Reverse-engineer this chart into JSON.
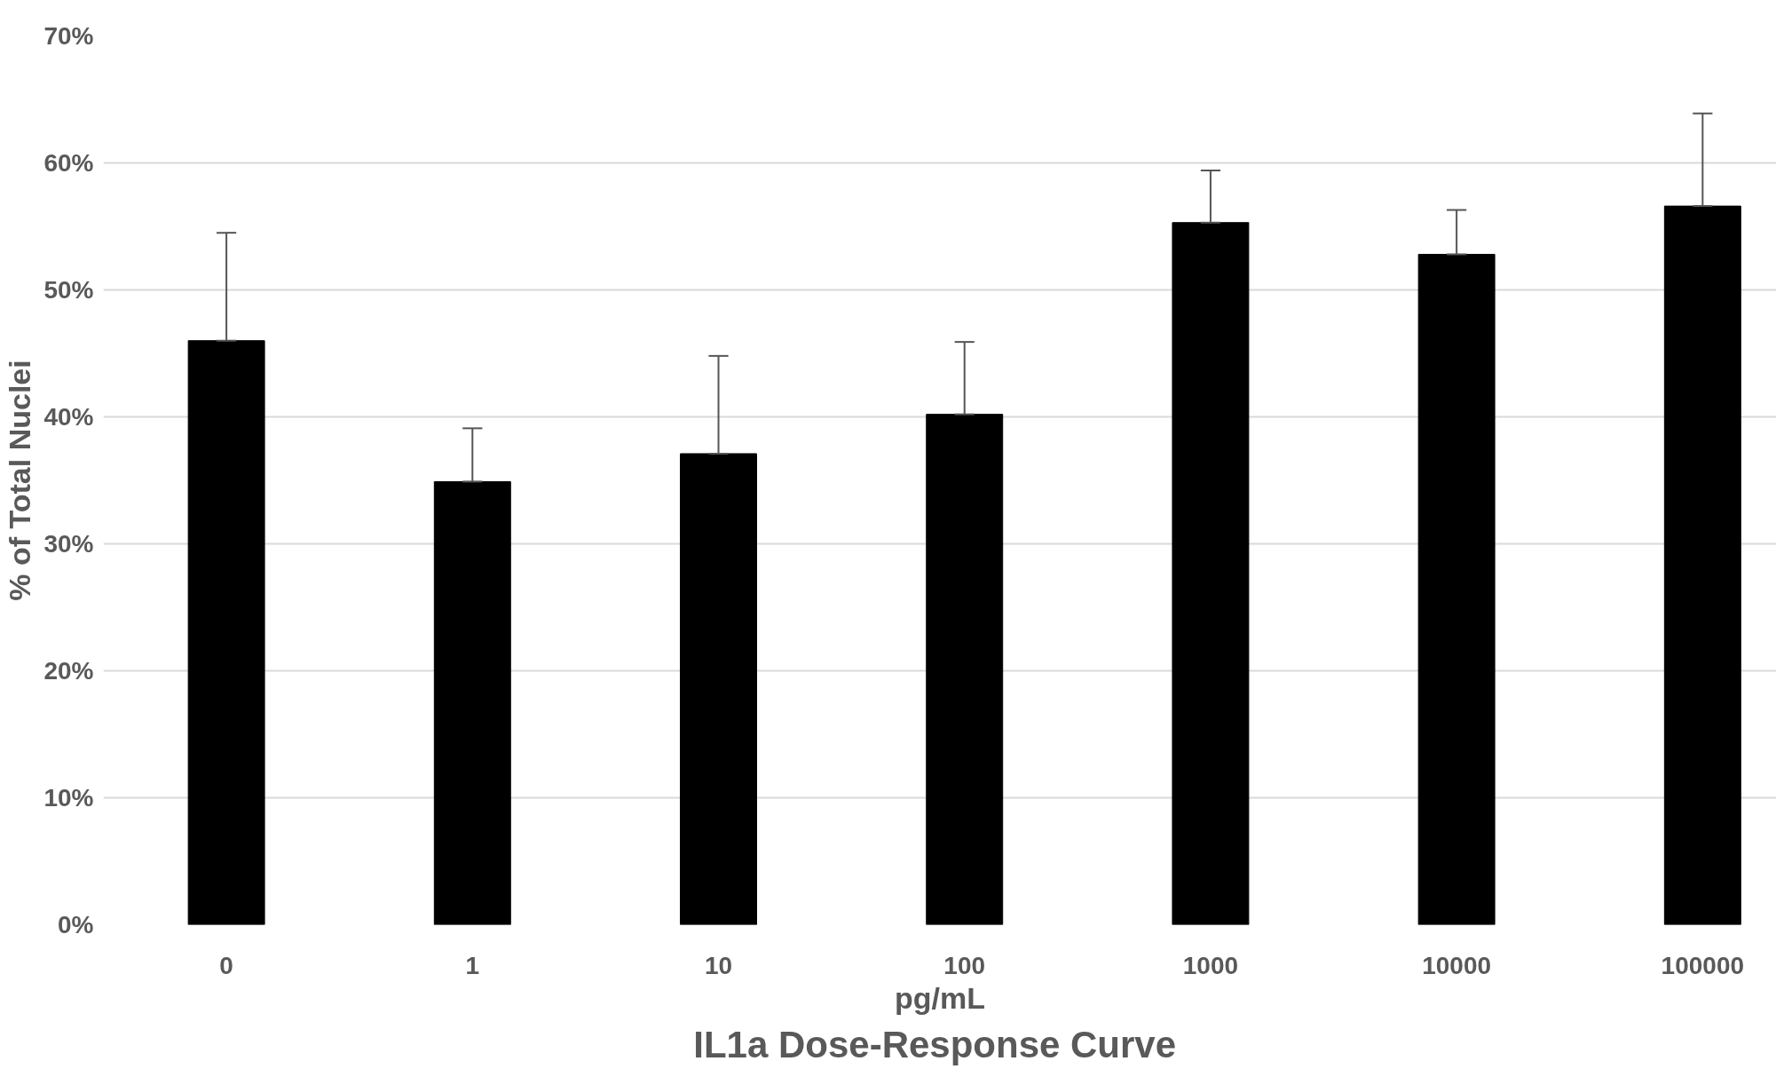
{
  "chart_data": {
    "type": "bar",
    "title": "IL1a  Dose-Response Curve",
    "xlabel": "pg/mL",
    "ylabel": "% of Total Nuclei",
    "categories": [
      "0",
      "1",
      "10",
      "100",
      "1000",
      "10000",
      "100000"
    ],
    "values": [
      46,
      34.9,
      37.1,
      40.2,
      55.3,
      52.8,
      56.6
    ],
    "errors": [
      [
        46,
        54.5
      ],
      [
        34.9,
        39.1
      ],
      [
        37.1,
        44.8
      ],
      [
        40.2,
        45.9
      ],
      [
        55.3,
        59.4
      ],
      [
        52.8,
        56.3
      ],
      [
        56.6,
        63.9
      ]
    ],
    "color": "#000000",
    "ylim": [
      0,
      70
    ],
    "yticks": [
      {
        "value": 0,
        "label": "0%"
      },
      {
        "value": 10,
        "label": "10%"
      },
      {
        "value": 20,
        "label": "20%"
      },
      {
        "value": 30,
        "label": "30%"
      },
      {
        "value": 40,
        "label": "40%"
      },
      {
        "value": 50,
        "label": "50%"
      },
      {
        "value": 60,
        "label": "60%"
      },
      {
        "value": 70,
        "label": "70%"
      }
    ],
    "grid": "y"
  }
}
